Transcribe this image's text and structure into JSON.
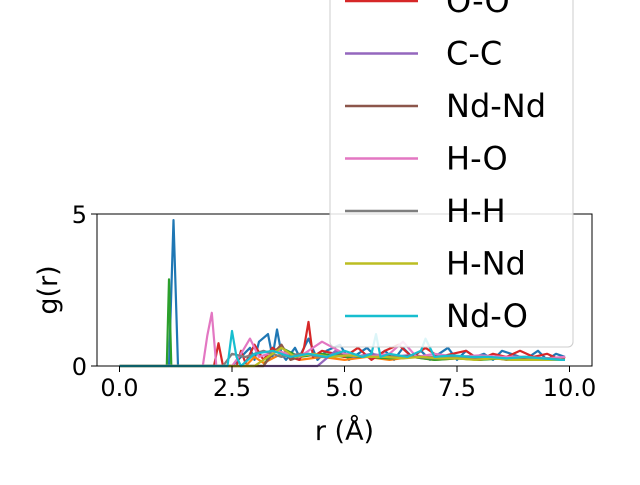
{
  "chart_data": {
    "type": "line",
    "title": "",
    "xlabel": "r (Å)",
    "ylabel": "g(r)",
    "xlim": [
      -0.5,
      10.5
    ],
    "ylim": [
      0,
      5
    ],
    "xticks": [
      0.0,
      2.5,
      5.0,
      7.5,
      10.0
    ],
    "xtick_labels": [
      "0.0",
      "2.5",
      "5.0",
      "7.5",
      "10.0"
    ],
    "yticks": [
      0,
      5
    ],
    "ytick_labels": [
      "0",
      "5"
    ],
    "grid": false,
    "legend_position": "top-right (extends above plot)",
    "series": [
      {
        "name": "",
        "color": "#1f77b4",
        "x": [
          0,
          1.0,
          1.1,
          1.2,
          1.3,
          1.4,
          2.5,
          2.9,
          3.0,
          3.1,
          3.3,
          3.4,
          3.5,
          3.6,
          3.7,
          3.9,
          4.0,
          4.2,
          4.4,
          4.6,
          4.9,
          5.1,
          5.3,
          5.5,
          5.7,
          5.9,
          6.1,
          6.3,
          6.5,
          6.7,
          6.9,
          7.1,
          7.3,
          7.5,
          7.7,
          7.9,
          8.1,
          8.3,
          8.5,
          8.7,
          8.9,
          9.1,
          9.3,
          9.5,
          9.7,
          9.9
        ],
        "y": [
          0,
          0,
          0,
          4.8,
          0,
          0,
          0,
          0.6,
          0.2,
          0.8,
          1.05,
          0.3,
          1.2,
          0.4,
          0.2,
          0.6,
          0.3,
          0.9,
          0.2,
          0.5,
          0.7,
          0.2,
          0.4,
          0.6,
          0.3,
          0.5,
          0.2,
          0.6,
          0.3,
          0.5,
          0.2,
          0.4,
          0.6,
          0.2,
          0.5,
          0.3,
          0.4,
          0.2,
          0.5,
          0.4,
          0.3,
          0.3,
          0.5,
          0.2,
          0.4,
          0.3
        ]
      },
      {
        "name": "",
        "color": "#ff7f0e",
        "x": [
          0,
          2.8,
          3.0,
          3.2,
          3.6,
          4.0,
          4.5,
          5.0,
          5.5,
          6.0,
          6.5,
          7.0,
          7.5,
          8.0,
          8.5,
          9.0,
          9.5,
          9.9
        ],
        "y": [
          0,
          0,
          0.3,
          0.1,
          0.4,
          0.2,
          0.3,
          0.2,
          0.3,
          0.2,
          0.3,
          0.2,
          0.25,
          0.2,
          0.3,
          0.2,
          0.25,
          0.2
        ]
      },
      {
        "name": "",
        "color": "#2ca02c",
        "x": [
          0,
          0.95,
          1.05,
          1.1,
          1.15,
          1.25,
          3.2,
          3.4,
          3.6,
          4.0,
          4.5,
          5.0,
          5.5,
          6.0,
          6.5,
          7.0,
          7.5,
          8.0,
          8.5,
          9.0,
          9.5,
          9.9
        ],
        "y": [
          0,
          0,
          0,
          2.85,
          0,
          0,
          0,
          0.5,
          0.6,
          0.3,
          0.4,
          0.3,
          0.3,
          0.25,
          0.3,
          0.2,
          0.25,
          0.2,
          0.25,
          0.2,
          0.2,
          0.2
        ]
      },
      {
        "name": "O-O",
        "color": "#d62728",
        "x": [
          0,
          2.1,
          2.2,
          2.3,
          2.6,
          2.7,
          2.8,
          3.0,
          3.2,
          3.4,
          3.6,
          3.8,
          4.0,
          4.1,
          4.2,
          4.3,
          4.5,
          4.8,
          5.0,
          5.3,
          5.6,
          5.9,
          6.2,
          6.5,
          6.8,
          7.1,
          7.4,
          7.7,
          8.0,
          8.3,
          8.6,
          8.9,
          9.2,
          9.5,
          9.8,
          9.9
        ],
        "y": [
          0,
          0,
          0.75,
          0,
          0,
          0.5,
          0.1,
          0.7,
          0.2,
          0.6,
          0.4,
          0.3,
          0.2,
          0.6,
          1.45,
          0.3,
          0.5,
          0.4,
          0.3,
          0.6,
          0.2,
          0.5,
          0.7,
          0.3,
          0.6,
          0.3,
          0.4,
          0.5,
          0.2,
          0.4,
          0.3,
          0.5,
          0.3,
          0.4,
          0.2,
          0.3
        ]
      },
      {
        "name": "C-C",
        "color": "#9467bd",
        "x": [
          0,
          4.4,
          4.8,
          5.2,
          5.6,
          6.0,
          6.4,
          6.8,
          7.2,
          7.6,
          8.0,
          8.4,
          8.8,
          9.2,
          9.6,
          9.9
        ],
        "y": [
          0,
          0,
          0.5,
          0.3,
          0.4,
          0.3,
          0.35,
          0.3,
          0.3,
          0.25,
          0.3,
          0.25,
          0.3,
          0.25,
          0.2,
          0.2
        ]
      },
      {
        "name": "Nd-Nd",
        "color": "#8c564b",
        "x": [
          0,
          3.2,
          3.4,
          3.6,
          3.8,
          4.2,
          4.6,
          5.0,
          5.4,
          5.8,
          6.2,
          6.6,
          7.0,
          7.4,
          7.8,
          8.2,
          8.6,
          9.0,
          9.4,
          9.9
        ],
        "y": [
          0,
          0,
          0.4,
          0.7,
          0.2,
          0.4,
          0.3,
          0.4,
          0.3,
          0.35,
          0.3,
          0.35,
          0.25,
          0.3,
          0.25,
          0.3,
          0.2,
          0.25,
          0.2,
          0.2
        ]
      },
      {
        "name": "H-O",
        "color": "#e377c2",
        "x": [
          0,
          1.85,
          1.95,
          2.05,
          2.15,
          2.5,
          2.7,
          2.9,
          3.1,
          3.5,
          4.0,
          4.5,
          5.0,
          5.5,
          6.0,
          6.3,
          6.6,
          7.0,
          7.5,
          8.0,
          8.5,
          9.0,
          9.5,
          9.9
        ],
        "y": [
          0,
          0,
          1.0,
          1.75,
          0,
          0,
          0.4,
          0.9,
          0.3,
          0.5,
          0.3,
          0.8,
          0.4,
          0.3,
          0.4,
          0.8,
          0.3,
          0.4,
          0.3,
          0.35,
          0.3,
          0.3,
          0.25,
          0.3
        ]
      },
      {
        "name": "H-H",
        "color": "#7f7f7f",
        "x": [
          0,
          2.3,
          2.5,
          2.8,
          3.2,
          3.6,
          4.0,
          4.5,
          5.0,
          5.5,
          6.0,
          6.5,
          7.0,
          7.5,
          8.0,
          8.5,
          9.0,
          9.5,
          9.9
        ],
        "y": [
          0,
          0,
          0.4,
          0.3,
          0.5,
          0.3,
          0.4,
          0.3,
          0.35,
          0.3,
          0.3,
          0.3,
          0.25,
          0.3,
          0.25,
          0.25,
          0.2,
          0.25,
          0.2
        ]
      },
      {
        "name": "H-Nd",
        "color": "#bcbd22",
        "x": [
          0,
          3.0,
          3.3,
          3.6,
          3.9,
          4.3,
          4.7,
          5.1,
          5.5,
          5.9,
          6.3,
          6.7,
          7.1,
          7.5,
          7.9,
          8.3,
          8.7,
          9.1,
          9.5,
          9.9
        ],
        "y": [
          0,
          0,
          0.3,
          0.6,
          0.3,
          0.4,
          0.3,
          0.35,
          0.3,
          0.3,
          0.25,
          0.3,
          0.25,
          0.25,
          0.2,
          0.25,
          0.2,
          0.2,
          0.2,
          0.2
        ]
      },
      {
        "name": "Nd-O",
        "color": "#17becf",
        "x": [
          0,
          2.4,
          2.5,
          2.6,
          2.7,
          3.0,
          3.4,
          3.8,
          4.2,
          4.6,
          5.0,
          5.4,
          5.6,
          5.7,
          5.8,
          6.0,
          6.4,
          6.7,
          6.8,
          7.0,
          7.4,
          7.8,
          8.2,
          8.6,
          9.0,
          9.4,
          9.8,
          9.9
        ],
        "y": [
          0,
          0,
          1.15,
          0.3,
          0,
          0.4,
          0.5,
          0.3,
          0.4,
          0.3,
          0.5,
          0.3,
          0.4,
          1.05,
          0.3,
          0.4,
          0.3,
          0.5,
          0.9,
          0.3,
          0.35,
          0.3,
          0.3,
          0.25,
          0.3,
          0.25,
          0.2,
          0.2
        ]
      }
    ]
  }
}
